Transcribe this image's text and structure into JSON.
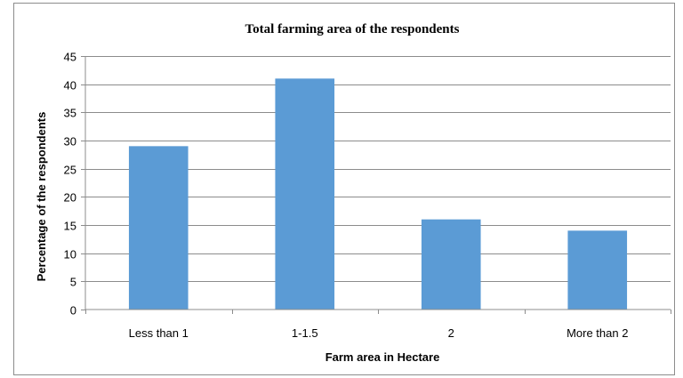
{
  "chart_data": {
    "type": "bar",
    "title": "Total farming area of the respondents",
    "xlabel": "Farm area in Hectare",
    "ylabel": "Percentage of the respondents",
    "categories": [
      "Less than 1",
      "1-1.5",
      "2",
      "More than 2"
    ],
    "values": [
      29,
      41,
      16,
      14
    ],
    "ylim": [
      0,
      45
    ],
    "yticks": [
      0,
      5,
      10,
      15,
      20,
      25,
      30,
      35,
      40,
      45
    ],
    "grid": true,
    "legend": "none",
    "bar_color": "#5b9bd5"
  }
}
